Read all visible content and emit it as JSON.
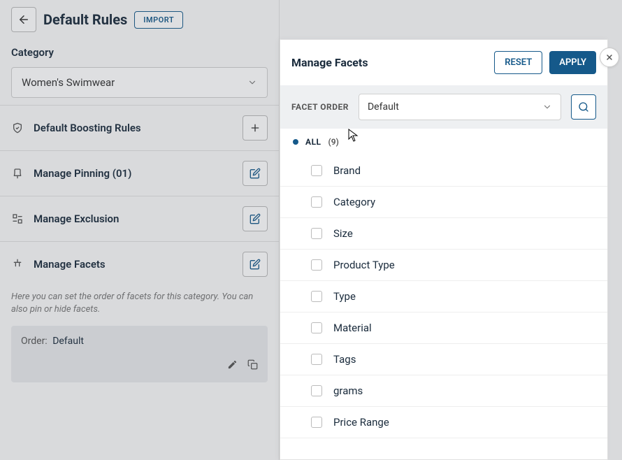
{
  "header": {
    "title": "Default Rules",
    "import_label": "IMPORT"
  },
  "category": {
    "label": "Category",
    "selected": "Women's Swimwear"
  },
  "rows": {
    "boosting": "Default Boosting Rules",
    "pinning": "Manage Pinning (01)",
    "exclusion": "Manage Exclusion",
    "facets": "Manage Facets"
  },
  "facets_desc": "Here you can set the order of facets for this category. You can also pin or hide facets.",
  "card": {
    "label": "Order:",
    "value": "Default"
  },
  "rp": {
    "title": "Manage Facets",
    "reset": "RESET",
    "apply": "APPLY",
    "facet_order_label": "FACET ORDER",
    "facet_order_value": "Default",
    "all_label": "ALL",
    "all_count": "(9)",
    "items": [
      "Brand",
      "Category",
      "Size",
      "Product Type",
      "Type",
      "Material",
      "Tags",
      "grams",
      "Price Range"
    ]
  }
}
